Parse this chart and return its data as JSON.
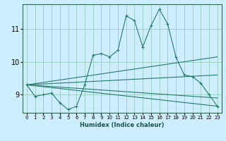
{
  "xlabel": "Humidex (Indice chaleur)",
  "bg_color": "#cceeff",
  "grid_color": "#99ccbb",
  "line_color": "#2a7a6a",
  "xlim": [
    -0.5,
    23.5
  ],
  "ylim": [
    8.45,
    11.75
  ],
  "yticks": [
    9,
    10,
    11
  ],
  "xticks": [
    0,
    1,
    2,
    3,
    4,
    5,
    6,
    7,
    8,
    9,
    10,
    11,
    12,
    13,
    14,
    15,
    16,
    17,
    18,
    19,
    20,
    21,
    22,
    23
  ],
  "lines": [
    {
      "x": [
        0,
        1,
        2,
        3,
        4,
        5,
        6,
        7,
        8,
        9,
        10,
        11,
        12,
        13,
        14,
        15,
        16,
        17,
        18,
        19,
        20,
        21,
        22,
        23
      ],
      "y": [
        9.3,
        8.95,
        9.0,
        9.05,
        8.75,
        8.55,
        8.65,
        9.3,
        10.2,
        10.25,
        10.15,
        10.35,
        11.4,
        11.25,
        10.45,
        11.1,
        11.6,
        11.15,
        10.15,
        9.6,
        9.55,
        9.35,
        9.0,
        8.65
      ],
      "marker": "+"
    },
    {
      "x": [
        0,
        23
      ],
      "y": [
        9.3,
        10.15
      ],
      "marker": null
    },
    {
      "x": [
        0,
        23
      ],
      "y": [
        9.3,
        9.6
      ],
      "marker": null
    },
    {
      "x": [
        0,
        23
      ],
      "y": [
        9.3,
        8.9
      ],
      "marker": null
    },
    {
      "x": [
        0,
        23
      ],
      "y": [
        9.3,
        8.65
      ],
      "marker": null
    }
  ]
}
